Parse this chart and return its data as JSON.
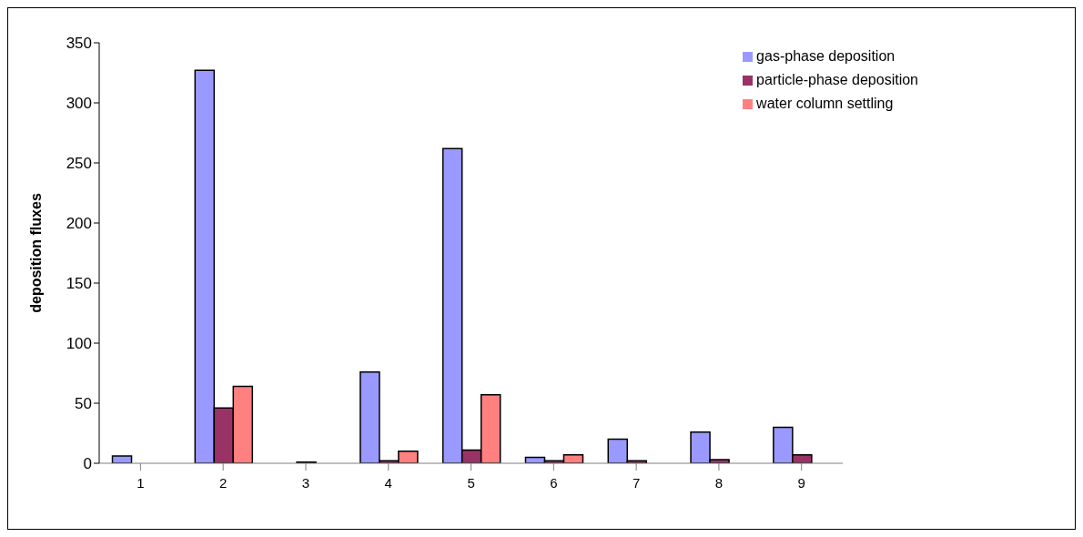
{
  "chart_data": {
    "type": "bar",
    "ylabel": "deposition fluxes",
    "categories": [
      "1",
      "2",
      "3",
      "4",
      "5",
      "6",
      "7",
      "8",
      "9"
    ],
    "series": [
      {
        "name": "gas-phase deposition",
        "color": "#9999ff",
        "values": [
          6,
          327,
          null,
          76,
          262,
          5,
          20,
          26,
          30
        ]
      },
      {
        "name": "particle-phase deposition",
        "color": "#993366",
        "values": [
          null,
          46,
          1,
          2,
          11,
          2,
          2,
          3,
          7
        ]
      },
      {
        "name": "water column settling",
        "color": "#ff8080",
        "values": [
          null,
          64,
          null,
          10,
          57,
          7,
          null,
          null,
          null
        ]
      }
    ],
    "ylim": [
      0,
      350
    ],
    "yticks": [
      0,
      50,
      100,
      150,
      200,
      250,
      300,
      350
    ],
    "grid": false,
    "legend": "top right"
  }
}
